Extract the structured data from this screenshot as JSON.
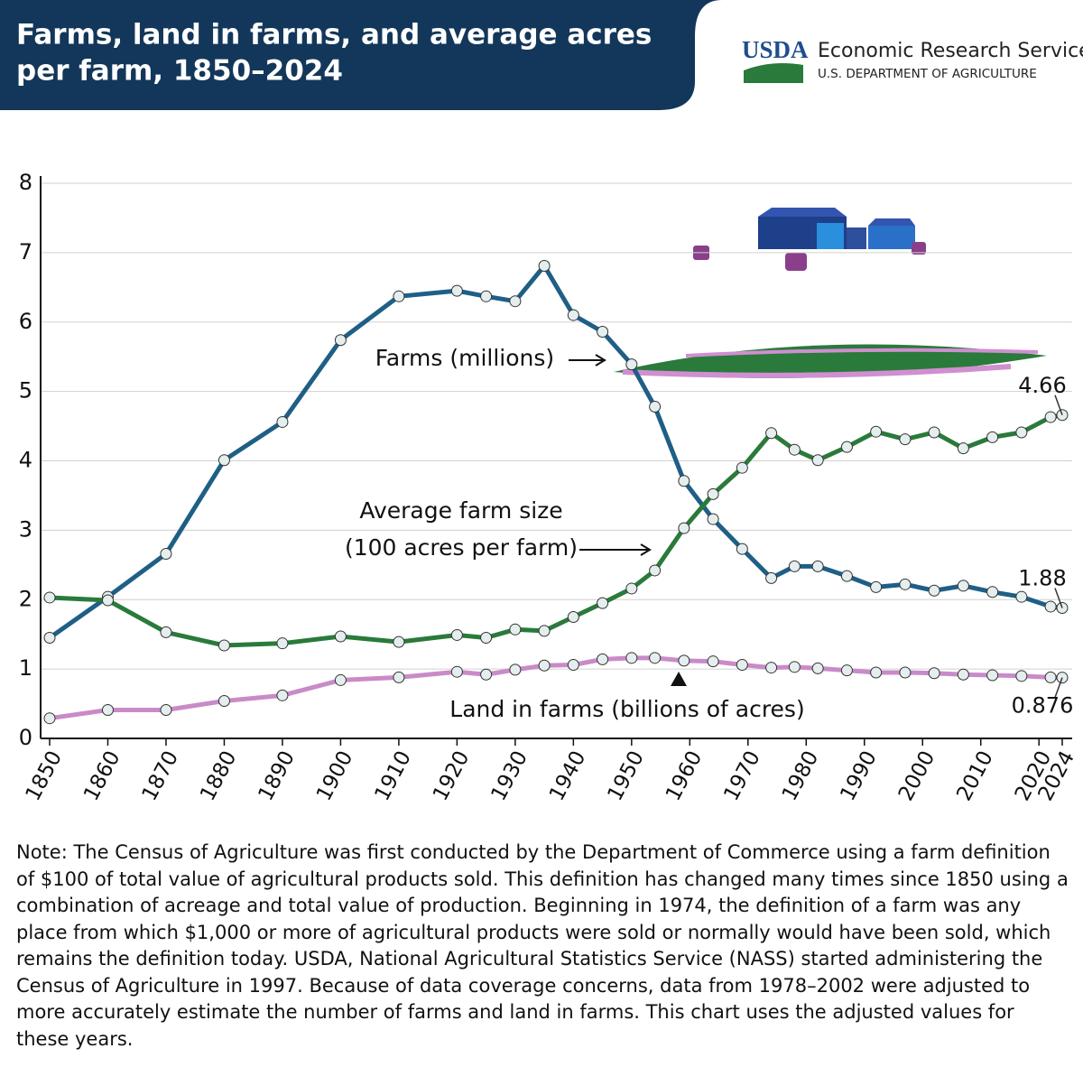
{
  "header": {
    "title_lines": [
      "Farms, land in farms, and average acres",
      "per farm, 1850–2024"
    ],
    "logo": "USDA",
    "agency": "Economic Research Service",
    "department": "U.S. DEPARTMENT OF AGRICULTURE"
  },
  "chart_data": {
    "type": "line",
    "x": [
      1850,
      1860,
      1870,
      1880,
      1890,
      1900,
      1910,
      1920,
      1925,
      1930,
      1935,
      1940,
      1945,
      1950,
      1954,
      1959,
      1964,
      1969,
      1974,
      1978,
      1982,
      1987,
      1992,
      1997,
      2002,
      2007,
      2012,
      2017,
      2022,
      2024
    ],
    "series": [
      {
        "name": "Farms (millions)",
        "color": "#1f5f86",
        "values": [
          1.45,
          2.04,
          2.66,
          4.01,
          4.56,
          5.74,
          6.37,
          6.45,
          6.37,
          6.3,
          6.81,
          6.1,
          5.86,
          5.39,
          4.78,
          3.71,
          3.16,
          2.73,
          2.31,
          2.48,
          2.48,
          2.34,
          2.18,
          2.22,
          2.13,
          2.2,
          2.11,
          2.04,
          1.9,
          1.88
        ]
      },
      {
        "name": "Average farm size",
        "color": "#2a7a3b",
        "values": [
          2.03,
          1.99,
          1.53,
          1.34,
          1.37,
          1.47,
          1.39,
          1.49,
          1.45,
          1.57,
          1.55,
          1.75,
          1.95,
          2.16,
          2.42,
          3.03,
          3.52,
          3.9,
          4.4,
          4.16,
          4.01,
          4.2,
          4.42,
          4.31,
          4.41,
          4.18,
          4.34,
          4.41,
          4.63,
          4.66
        ]
      },
      {
        "name": "Land in farms (billions of acres)",
        "color": "#c98bc8",
        "values": [
          0.29,
          0.41,
          0.41,
          0.54,
          0.62,
          0.84,
          0.88,
          0.96,
          0.92,
          0.99,
          1.05,
          1.06,
          1.14,
          1.16,
          1.16,
          1.12,
          1.11,
          1.06,
          1.02,
          1.03,
          1.01,
          0.98,
          0.95,
          0.95,
          0.94,
          0.92,
          0.91,
          0.9,
          0.88,
          0.876
        ]
      }
    ],
    "annotations": [
      "(100 acres per farm)"
    ],
    "xlim": [
      1850,
      2024
    ],
    "xticks": [
      1850,
      1860,
      1870,
      1880,
      1890,
      1900,
      1910,
      1920,
      1930,
      1940,
      1950,
      1960,
      1970,
      1980,
      1990,
      2000,
      2010,
      2020,
      2024
    ],
    "ylim": [
      0,
      8
    ],
    "yticks": [
      0,
      1,
      2,
      3,
      4,
      5,
      6,
      7,
      8
    ],
    "grid": true
  },
  "note": "Note: The Census of Agriculture was first conducted by the Department of Commerce using a farm definition of $100 of total value of agricultural products sold. This definition has changed many times since 1850 using a combination of acreage and total value of production. Beginning in 1974, the definition of a farm was any place from which $1,000 or more of agricultural products were sold or normally would have been sold, which remains the definition today. USDA, National Agricultural Statistics Service (NASS) started administering the Census of Agriculture in 1997. Because of data coverage concerns, data from 1978–2002 were adjusted to more accurately estimate the number of farms and land in farms. This chart uses the adjusted values for these years."
}
